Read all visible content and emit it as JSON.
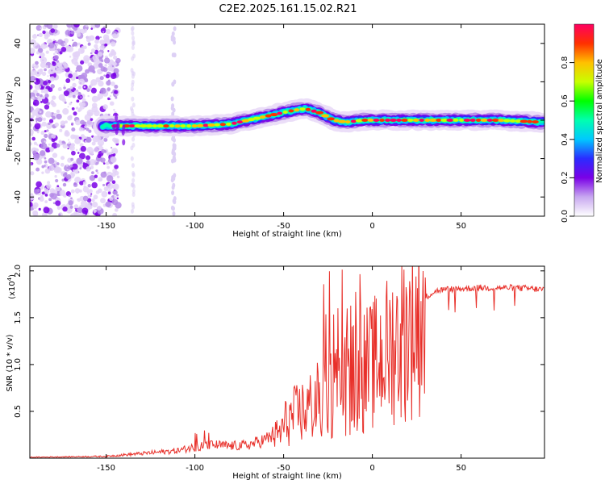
{
  "page_title": "C2E2.2025.161.15.02.R21",
  "chart_data": [
    {
      "type": "heatmap",
      "name": "spectrogram",
      "title": "C2E2.2025.161.15.02.R21",
      "xlabel": "Height of straight line (km)",
      "ylabel": "Frequency (Hz)",
      "xlim": [
        -193,
        97
      ],
      "ylim": [
        -50,
        50
      ],
      "x_ticks": [
        -150,
        -100,
        -50,
        0,
        50
      ],
      "x_tick_labels": [
        "-150",
        "-100",
        "-50",
        "0",
        "50"
      ],
      "y_ticks": [
        -40,
        -20,
        0,
        20,
        40
      ],
      "y_tick_labels": [
        "-40",
        "-20",
        "0",
        "20",
        "40"
      ],
      "ridge": {
        "x": [
          -145,
          -120,
          -100,
          -80,
          -60,
          -45,
          -38,
          -30,
          -22,
          -15,
          -5,
          10,
          40,
          70,
          95
        ],
        "y": [
          -3,
          -3,
          -3,
          -2,
          2,
          5,
          6,
          4,
          0,
          -1,
          0,
          0,
          0,
          0,
          -1
        ]
      },
      "colorbar": {
        "label": "Normalized spectral amplitude",
        "range": [
          0,
          1
        ],
        "ticks": [
          0.0,
          0.2,
          0.4,
          0.6,
          0.8
        ],
        "tick_labels": [
          "0.0",
          "0.2",
          "0.4",
          "0.6",
          "0.8"
        ],
        "colors": [
          "#ffffff",
          "#c8a8f0",
          "#7a00e6",
          "#2b2bff",
          "#00c8ff",
          "#00ffb0",
          "#00ff00",
          "#c8ff00",
          "#ffc000",
          "#ff3000",
          "#ff0060"
        ]
      }
    },
    {
      "type": "line",
      "name": "snr",
      "xlabel": "Height of straight line (km)",
      "ylabel": "SNR (10 * v/v)",
      "scale_label": "(x10",
      "scale_exponent": "4",
      "scale_close": ")",
      "xlim": [
        -193,
        97
      ],
      "ylim": [
        0,
        2.05
      ],
      "x_ticks": [
        -150,
        -100,
        -50,
        0,
        50
      ],
      "x_tick_labels": [
        "-150",
        "-100",
        "-50",
        "0",
        "50"
      ],
      "y_ticks": [
        0.5,
        1.0,
        1.5,
        2.0
      ],
      "y_tick_labels": [
        "0.5",
        "1.0",
        "1.5",
        "2.0"
      ],
      "color": "#e8302a",
      "envelope": {
        "x": [
          -193,
          -150,
          -130,
          -110,
          -100,
          -90,
          -80,
          -70,
          -60,
          -52,
          -48,
          -44,
          -40,
          -36,
          -32,
          -28,
          -24,
          -20,
          -16,
          -12,
          -8,
          -4,
          0,
          5,
          10,
          15,
          20,
          25,
          30,
          35,
          40,
          60,
          80,
          97
        ],
        "y": [
          0.01,
          0.02,
          0.05,
          0.08,
          0.12,
          0.14,
          0.13,
          0.14,
          0.2,
          0.3,
          0.45,
          0.5,
          0.55,
          0.6,
          0.65,
          0.7,
          0.75,
          0.85,
          0.9,
          0.95,
          1.0,
          1.05,
          1.1,
          1.2,
          1.3,
          1.4,
          1.5,
          1.62,
          1.72,
          1.78,
          1.8,
          1.82,
          1.82,
          1.8
        ]
      }
    }
  ]
}
